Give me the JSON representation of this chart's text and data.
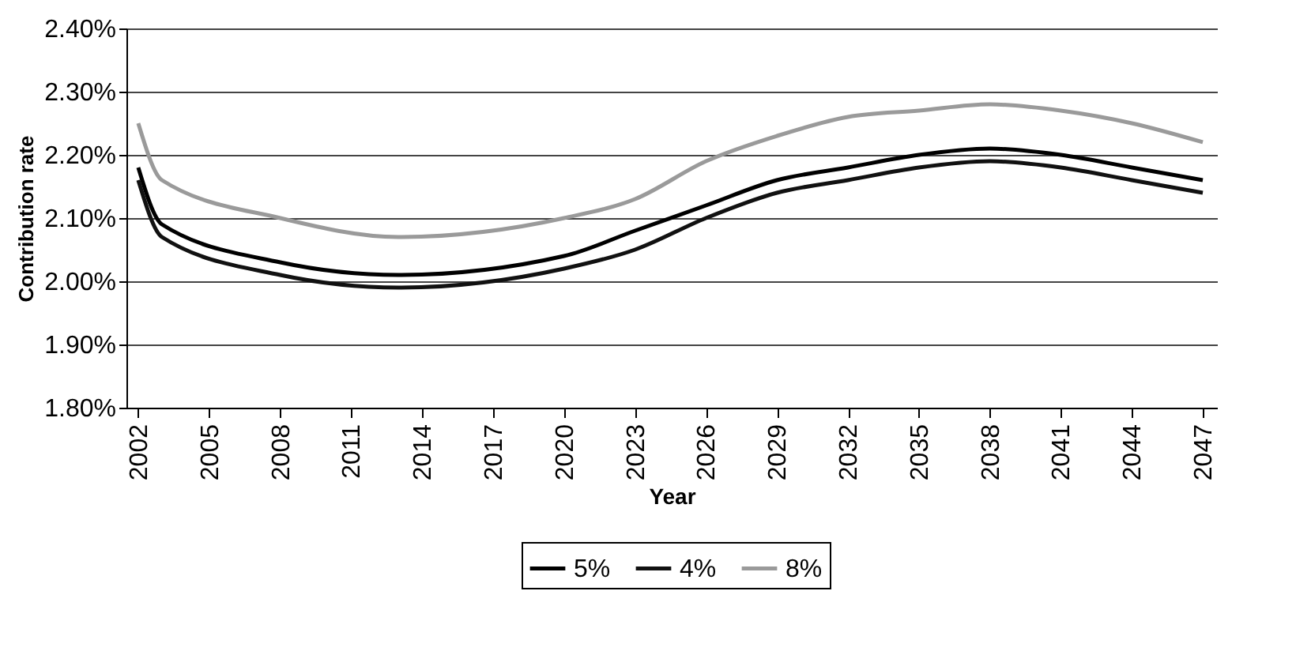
{
  "chart_data": {
    "type": "line",
    "xlabel": "Year",
    "ylabel": "Contribution rate",
    "xlim": [
      2001.5,
      2047.6
    ],
    "xticks": [
      2002,
      2005,
      2008,
      2011,
      2014,
      2017,
      2020,
      2023,
      2026,
      2029,
      2032,
      2035,
      2038,
      2041,
      2044,
      2047
    ],
    "ylim": [
      1.8,
      2.4
    ],
    "yticks": [
      {
        "value": 1.8,
        "label": "1.80%"
      },
      {
        "value": 1.9,
        "label": "1.90%"
      },
      {
        "value": 2.0,
        "label": "2.00%"
      },
      {
        "value": 2.1,
        "label": "2.10%"
      },
      {
        "value": 2.2,
        "label": "2.20%"
      },
      {
        "value": 2.3,
        "label": "2.30%"
      },
      {
        "value": 2.4,
        "label": "2.40%"
      }
    ],
    "grid": "y",
    "legend": "bottom",
    "marker": "none",
    "line_style": "solid",
    "series": [
      {
        "name": "5%",
        "color": "#000000",
        "x": [
          2002,
          2003,
          2008,
          2013,
          2020,
          2023,
          2026,
          2029,
          2032,
          2035,
          2038,
          2041,
          2044,
          2047
        ],
        "values": [
          2.18,
          2.09,
          2.03,
          2.01,
          2.04,
          2.08,
          2.12,
          2.16,
          2.18,
          2.2,
          2.21,
          2.2,
          2.18,
          2.16
        ]
      },
      {
        "name": "4%",
        "color": "#111111",
        "x": [
          2002,
          2003,
          2008,
          2013,
          2020,
          2023,
          2026,
          2029,
          2032,
          2035,
          2038,
          2041,
          2044,
          2047
        ],
        "values": [
          2.16,
          2.07,
          2.01,
          1.99,
          2.02,
          2.05,
          2.1,
          2.14,
          2.16,
          2.18,
          2.19,
          2.18,
          2.16,
          2.14
        ]
      },
      {
        "name": "8%",
        "color": "#9a9a9a",
        "x": [
          2002,
          2003,
          2008,
          2013,
          2020,
          2023,
          2026,
          2029,
          2032,
          2035,
          2038,
          2041,
          2044,
          2047
        ],
        "values": [
          2.25,
          2.16,
          2.1,
          2.07,
          2.1,
          2.13,
          2.19,
          2.23,
          2.26,
          2.27,
          2.28,
          2.27,
          2.25,
          2.22
        ]
      }
    ]
  }
}
